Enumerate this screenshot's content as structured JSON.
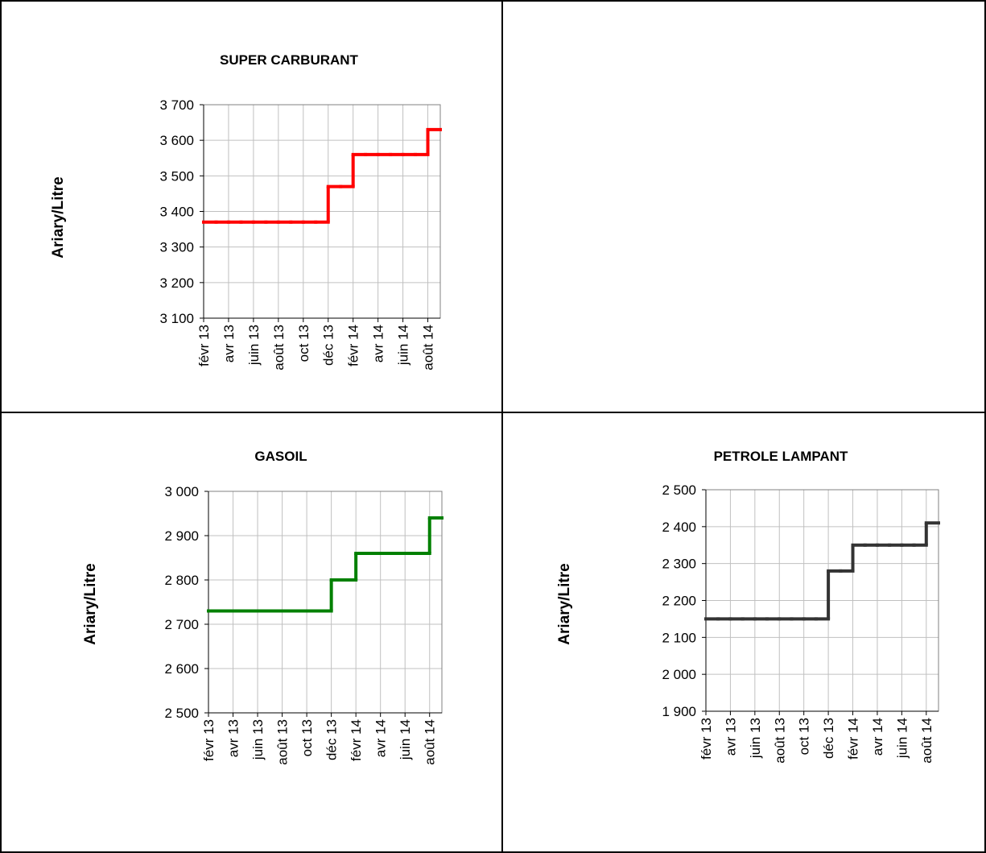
{
  "chart_data": [
    {
      "type": "line",
      "title": "SUPER CARBURANT",
      "y_label": "Ariary/Litre",
      "categories": [
        "févr 13",
        null,
        "avr 13",
        null,
        "juin 13",
        null,
        "août 13",
        null,
        "oct 13",
        null,
        "déc 13",
        null,
        "févr 14",
        null,
        "avr 14",
        null,
        "juin 14",
        null,
        "août 14"
      ],
      "series": [
        {
          "color": "#ff0000",
          "values": [
            3370,
            3370,
            3370,
            3370,
            3370,
            3370,
            3370,
            3370,
            3370,
            3370,
            3470,
            3470,
            3560,
            3560,
            3560,
            3560,
            3560,
            3560,
            3630
          ]
        }
      ],
      "ylim": [
        3100,
        3700
      ],
      "yticks": [
        {
          "value": 3100,
          "label": "3 100"
        },
        {
          "value": 3200,
          "label": "3 200"
        },
        {
          "value": 3300,
          "label": "3 300"
        },
        {
          "value": 3400,
          "label": "3 400"
        },
        {
          "value": 3500,
          "label": "3 500"
        },
        {
          "value": 3600,
          "label": "3 600"
        },
        {
          "value": 3700,
          "label": "3 700"
        }
      ],
      "grid": true,
      "step": true
    },
    {
      "type": "line",
      "title": "GASOIL",
      "y_label": "Ariary/Litre",
      "categories": [
        "févr 13",
        null,
        "avr 13",
        null,
        "juin 13",
        null,
        "août 13",
        null,
        "oct 13",
        null,
        "déc 13",
        null,
        "févr 14",
        null,
        "avr 14",
        null,
        "juin 14",
        null,
        "août 14"
      ],
      "series": [
        {
          "color": "#008000",
          "values": [
            2730,
            2730,
            2730,
            2730,
            2730,
            2730,
            2730,
            2730,
            2730,
            2730,
            2800,
            2800,
            2860,
            2860,
            2860,
            2860,
            2860,
            2860,
            2940
          ]
        }
      ],
      "ylim": [
        2500,
        3000
      ],
      "yticks": [
        {
          "value": 2500,
          "label": "2 500"
        },
        {
          "value": 2600,
          "label": "2 600"
        },
        {
          "value": 2700,
          "label": "2 700"
        },
        {
          "value": 2800,
          "label": "2 800"
        },
        {
          "value": 2900,
          "label": "2 900"
        },
        {
          "value": 3000,
          "label": "3 000"
        }
      ],
      "grid": true,
      "step": true
    },
    {
      "type": "line",
      "title": "PETROLE LAMPANT",
      "y_label": "Ariary/Litre",
      "categories": [
        "févr 13",
        null,
        "avr 13",
        null,
        "juin 13",
        null,
        "août 13",
        null,
        "oct 13",
        null,
        "déc 13",
        null,
        "févr 14",
        null,
        "avr 14",
        null,
        "juin 14",
        null,
        "août 14"
      ],
      "series": [
        {
          "color": "#333333",
          "values": [
            2150,
            2150,
            2150,
            2150,
            2150,
            2150,
            2150,
            2150,
            2150,
            2150,
            2280,
            2280,
            2350,
            2350,
            2350,
            2350,
            2350,
            2350,
            2410
          ]
        }
      ],
      "ylim": [
        1900,
        2500
      ],
      "yticks": [
        {
          "value": 1900,
          "label": "1 900"
        },
        {
          "value": 2000,
          "label": "2 000"
        },
        {
          "value": 2100,
          "label": "2 100"
        },
        {
          "value": 2200,
          "label": "2 200"
        },
        {
          "value": 2300,
          "label": "2 300"
        },
        {
          "value": 2400,
          "label": "2 400"
        },
        {
          "value": 2500,
          "label": "2 500"
        }
      ],
      "grid": true,
      "step": true
    }
  ]
}
